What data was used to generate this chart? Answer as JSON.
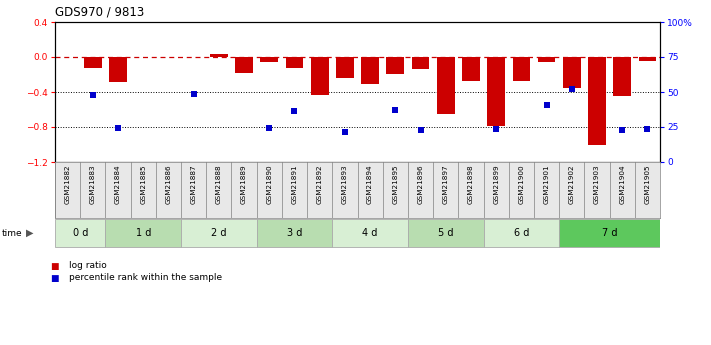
{
  "title": "GDS970 / 9813",
  "samples": [
    "GSM21882",
    "GSM21883",
    "GSM21884",
    "GSM21885",
    "GSM21886",
    "GSM21887",
    "GSM21888",
    "GSM21889",
    "GSM21890",
    "GSM21891",
    "GSM21892",
    "GSM21893",
    "GSM21894",
    "GSM21895",
    "GSM21896",
    "GSM21897",
    "GSM21898",
    "GSM21899",
    "GSM21900",
    "GSM21901",
    "GSM21902",
    "GSM21903",
    "GSM21904",
    "GSM21905"
  ],
  "log_ratio": [
    0.0,
    -0.13,
    -0.28,
    0.0,
    0.0,
    0.0,
    0.03,
    -0.18,
    -0.06,
    -0.12,
    -0.43,
    -0.24,
    -0.31,
    -0.19,
    -0.14,
    -0.65,
    -0.27,
    -0.79,
    -0.27,
    -0.06,
    -0.35,
    -1.0,
    -0.45,
    -0.05
  ],
  "pct_rank": [
    null,
    -0.43,
    -0.81,
    null,
    null,
    -0.42,
    null,
    null,
    -0.81,
    -0.62,
    null,
    -0.86,
    null,
    -0.61,
    -0.83,
    null,
    null,
    -0.82,
    null,
    -0.55,
    -0.37,
    null,
    -0.83,
    -0.82
  ],
  "time_groups": [
    {
      "label": "0 d",
      "start": 0,
      "end": 2,
      "color": "#d8efd4"
    },
    {
      "label": "1 d",
      "start": 2,
      "end": 5,
      "color": "#b8ddb0"
    },
    {
      "label": "2 d",
      "start": 5,
      "end": 8,
      "color": "#d8efd4"
    },
    {
      "label": "3 d",
      "start": 8,
      "end": 11,
      "color": "#b8ddb0"
    },
    {
      "label": "4 d",
      "start": 11,
      "end": 14,
      "color": "#d8efd4"
    },
    {
      "label": "5 d",
      "start": 14,
      "end": 17,
      "color": "#b8ddb0"
    },
    {
      "label": "6 d",
      "start": 17,
      "end": 20,
      "color": "#d8efd4"
    },
    {
      "label": "7 d",
      "start": 20,
      "end": 24,
      "color": "#5dc85d"
    }
  ],
  "ylim_left": [
    -1.2,
    0.4
  ],
  "ylim_right": [
    0,
    100
  ],
  "yticks_left": [
    -1.2,
    -0.8,
    -0.4,
    0.0,
    0.4
  ],
  "yticks_right": [
    0,
    25,
    50,
    75,
    100
  ],
  "bar_color": "#cc0000",
  "pct_color": "#0000cc",
  "hline_color": "#cc0000",
  "dotted_line_color": "#000000",
  "legend_items": [
    "log ratio",
    "percentile rank within the sample"
  ],
  "fig_width": 7.11,
  "fig_height": 3.45,
  "dpi": 100
}
